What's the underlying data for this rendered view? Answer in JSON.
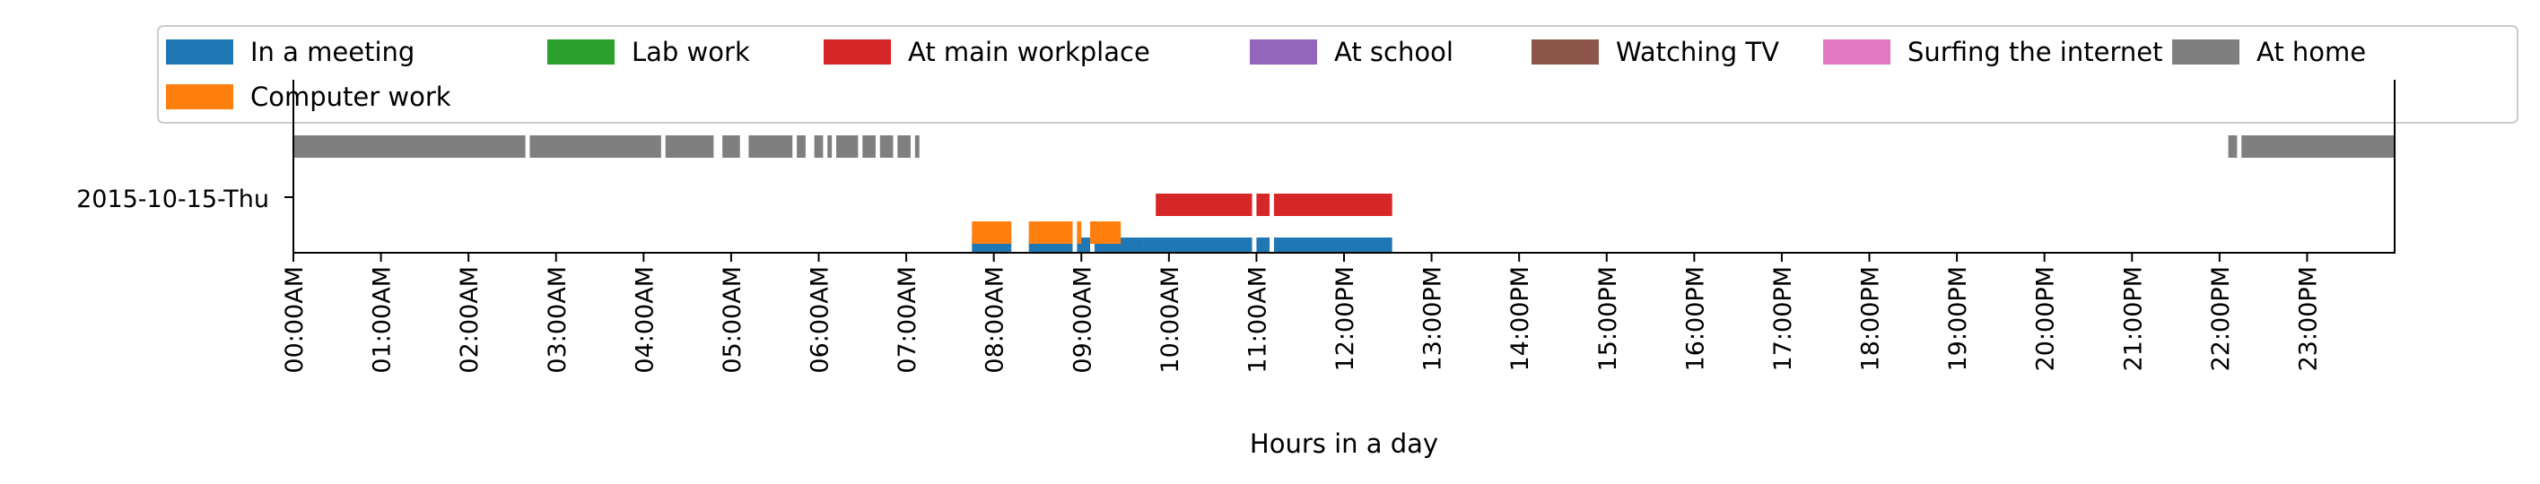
{
  "chart_data": {
    "type": "timeline",
    "xlabel": "Hours in a day",
    "xlim": [
      0,
      24
    ],
    "x_ticks": [
      "00:00AM",
      "01:00AM",
      "02:00AM",
      "03:00AM",
      "04:00AM",
      "05:00AM",
      "06:00AM",
      "07:00AM",
      "08:00AM",
      "09:00AM",
      "10:00AM",
      "11:00AM",
      "12:00PM",
      "13:00PM",
      "14:00PM",
      "15:00PM",
      "16:00PM",
      "17:00PM",
      "18:00PM",
      "19:00PM",
      "20:00PM",
      "21:00PM",
      "22:00PM",
      "23:00PM"
    ],
    "y_ticks": [
      "2015-10-15-Thu"
    ],
    "legend_position": "top",
    "series": [
      {
        "name": "In a meeting",
        "color": "#1f77b4",
        "intervals": [
          [
            7.75,
            8.2
          ],
          [
            8.4,
            8.9
          ],
          [
            8.95,
            9.1
          ],
          [
            9.15,
            9.7
          ],
          [
            9.7,
            10.95
          ],
          [
            11.0,
            11.15
          ],
          [
            11.2,
            12.55
          ]
        ]
      },
      {
        "name": "Lab work",
        "color": "#2ca02c",
        "intervals": []
      },
      {
        "name": "At main workplace",
        "color": "#d62728",
        "intervals": [
          [
            9.85,
            10.95
          ],
          [
            11.0,
            11.15
          ],
          [
            11.2,
            12.55
          ]
        ]
      },
      {
        "name": "At school",
        "color": "#9467bd",
        "intervals": []
      },
      {
        "name": "Watching TV",
        "color": "#8c564b",
        "intervals": []
      },
      {
        "name": "Surfing the internet",
        "color": "#e377c2",
        "intervals": []
      },
      {
        "name": "At home",
        "color": "#7f7f7f",
        "intervals": [
          [
            0.0,
            2.65
          ],
          [
            2.7,
            4.2
          ],
          [
            4.25,
            4.8
          ],
          [
            4.9,
            5.1
          ],
          [
            5.2,
            5.7
          ],
          [
            5.75,
            5.85
          ],
          [
            5.95,
            6.05
          ],
          [
            6.1,
            6.15
          ],
          [
            6.2,
            6.45
          ],
          [
            6.5,
            6.65
          ],
          [
            6.7,
            6.85
          ],
          [
            6.9,
            7.05
          ],
          [
            7.1,
            7.15
          ],
          [
            22.1,
            22.2
          ],
          [
            22.25,
            24.0
          ]
        ]
      },
      {
        "name": "Computer work",
        "color": "#ff7f0e",
        "intervals": [
          [
            7.75,
            8.2
          ],
          [
            8.4,
            8.9
          ],
          [
            8.95,
            9.0
          ],
          [
            9.1,
            9.45
          ]
        ]
      }
    ]
  }
}
